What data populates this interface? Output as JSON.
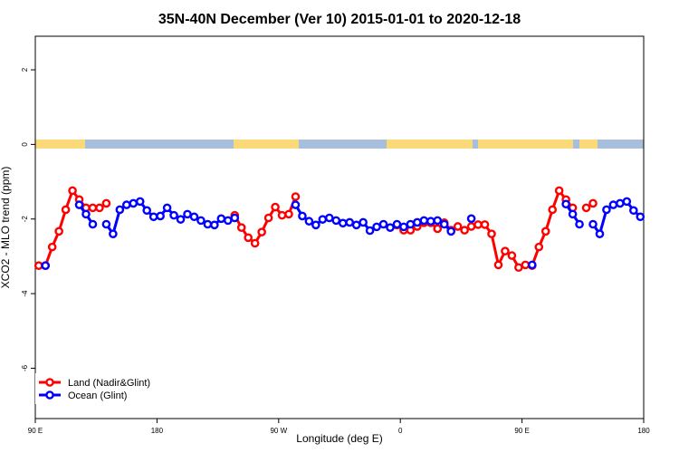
{
  "chart_data": {
    "type": "line",
    "title": "35N-40N December (Ver 10)   2015-01-01 to 2020-12-18",
    "x_label": "Longitude (deg E)",
    "y_label": "XCO2 - MLO trend (ppm)",
    "x": [
      92.5,
      97.5,
      102.5,
      107.5,
      112.5,
      117.5,
      122.5,
      127.5,
      132.5,
      137.5,
      142.5,
      147.5,
      152.5,
      157.5,
      162.5,
      167.5,
      172.5,
      177.5,
      182.5,
      187.5,
      192.5,
      197.5,
      202.5,
      207.5,
      212.5,
      217.5,
      222.5,
      227.5,
      232.5,
      237.5,
      242.5,
      247.5,
      252.5,
      257.5,
      262.5,
      267.5,
      272.5,
      277.5,
      282.5,
      287.5,
      292.5,
      297.5,
      302.5,
      307.5,
      312.5,
      317.5,
      322.5,
      327.5,
      332.5,
      337.5,
      342.5,
      347.5,
      352.5,
      357.5,
      362.5,
      367.5,
      372.5,
      377.5,
      382.5,
      387.5,
      392.5,
      397.5,
      402.5,
      407.5,
      412.5,
      417.5,
      422.5,
      427.5,
      432.5,
      437.5,
      442.5,
      447.5,
      452.5,
      457.5,
      462.5,
      467.5,
      472.5,
      477.5,
      482.5,
      487.5,
      492.5,
      497.5,
      502.5,
      507.5,
      512.5,
      517.5,
      522.5,
      527.5,
      532.5,
      537.5
    ],
    "series": [
      {
        "name": "Land (Nadir&Glint)",
        "color": "#ff0000",
        "values": [
          -3.25,
          -3.25,
          -2.75,
          -2.33,
          -1.75,
          -1.24,
          -1.48,
          -1.7,
          -1.7,
          -1.7,
          -1.58,
          null,
          null,
          null,
          null,
          null,
          null,
          null,
          null,
          null,
          null,
          null,
          null,
          null,
          null,
          null,
          null,
          null,
          null,
          -1.9,
          -2.23,
          -2.5,
          -2.65,
          -2.35,
          -1.97,
          -1.68,
          -1.9,
          -1.87,
          -1.4,
          null,
          null,
          null,
          null,
          null,
          null,
          null,
          null,
          null,
          null,
          null,
          null,
          null,
          null,
          -2.16,
          -2.3,
          -2.3,
          -2.2,
          -2.1,
          -2.1,
          -2.26,
          -2.1,
          -2.3,
          -2.2,
          -2.3,
          -2.2,
          -2.15,
          -2.15,
          -2.4,
          -3.23,
          -2.86,
          -2.98,
          -3.3,
          -3.23,
          -3.25,
          -2.75,
          -2.33,
          -1.75,
          -1.24,
          -1.48,
          -1.7,
          null,
          -1.7,
          -1.58,
          null,
          null,
          null,
          null,
          null,
          null,
          null
        ]
      },
      {
        "name": "Ocean (Glint)",
        "color": "#0000ff",
        "values": [
          null,
          -3.25,
          null,
          null,
          null,
          null,
          -1.62,
          -1.87,
          -2.14,
          null,
          -2.14,
          -2.4,
          -1.75,
          -1.62,
          -1.58,
          -1.53,
          -1.77,
          -1.94,
          -1.92,
          -1.7,
          -1.9,
          -2.01,
          -1.87,
          -1.94,
          -2.04,
          -2.14,
          -2.16,
          -1.99,
          -2.04,
          -1.97,
          null,
          null,
          null,
          null,
          null,
          null,
          null,
          null,
          -1.62,
          -1.92,
          -2.06,
          -2.16,
          -2.01,
          -1.97,
          -2.04,
          -2.11,
          -2.09,
          -2.16,
          -2.09,
          -2.31,
          -2.21,
          -2.14,
          -2.23,
          -2.14,
          -2.21,
          -2.14,
          -2.09,
          -2.04,
          -2.06,
          -2.04,
          -2.14,
          -2.33,
          null,
          null,
          -1.99,
          null,
          null,
          null,
          null,
          null,
          null,
          null,
          null,
          -3.23,
          null,
          null,
          null,
          null,
          -1.6,
          -1.87,
          -2.14,
          null,
          -2.14,
          -2.4,
          -1.75,
          -1.62,
          -1.58,
          -1.53,
          -1.77,
          -1.94
        ]
      }
    ],
    "xlim": [
      90,
      540
    ],
    "xticks": [
      {
        "value": 90,
        "label": "90 E"
      },
      {
        "value": 180,
        "label": "180"
      },
      {
        "value": 270,
        "label": "90 W"
      },
      {
        "value": 360,
        "label": "0"
      },
      {
        "value": 450,
        "label": "90 E"
      },
      {
        "value": 540,
        "label": "180"
      }
    ],
    "ylim": [
      -7.35,
      2.9
    ],
    "yticks": [
      -6,
      -4,
      -2,
      0,
      2
    ],
    "legend": "bottom-left"
  }
}
